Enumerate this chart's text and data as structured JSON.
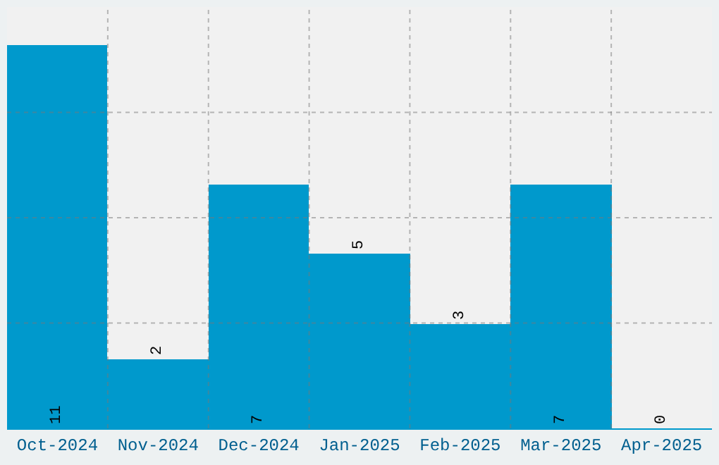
{
  "chart_data": {
    "type": "bar",
    "categories": [
      "Oct-2024",
      "Nov-2024",
      "Dec-2024",
      "Jan-2025",
      "Feb-2025",
      "Mar-2025",
      "Apr-2025"
    ],
    "values": [
      11,
      2,
      7,
      5,
      3,
      7,
      0
    ],
    "color": "#0099cc",
    "data_labels": true,
    "grid": true,
    "tick_labels": "x"
  }
}
